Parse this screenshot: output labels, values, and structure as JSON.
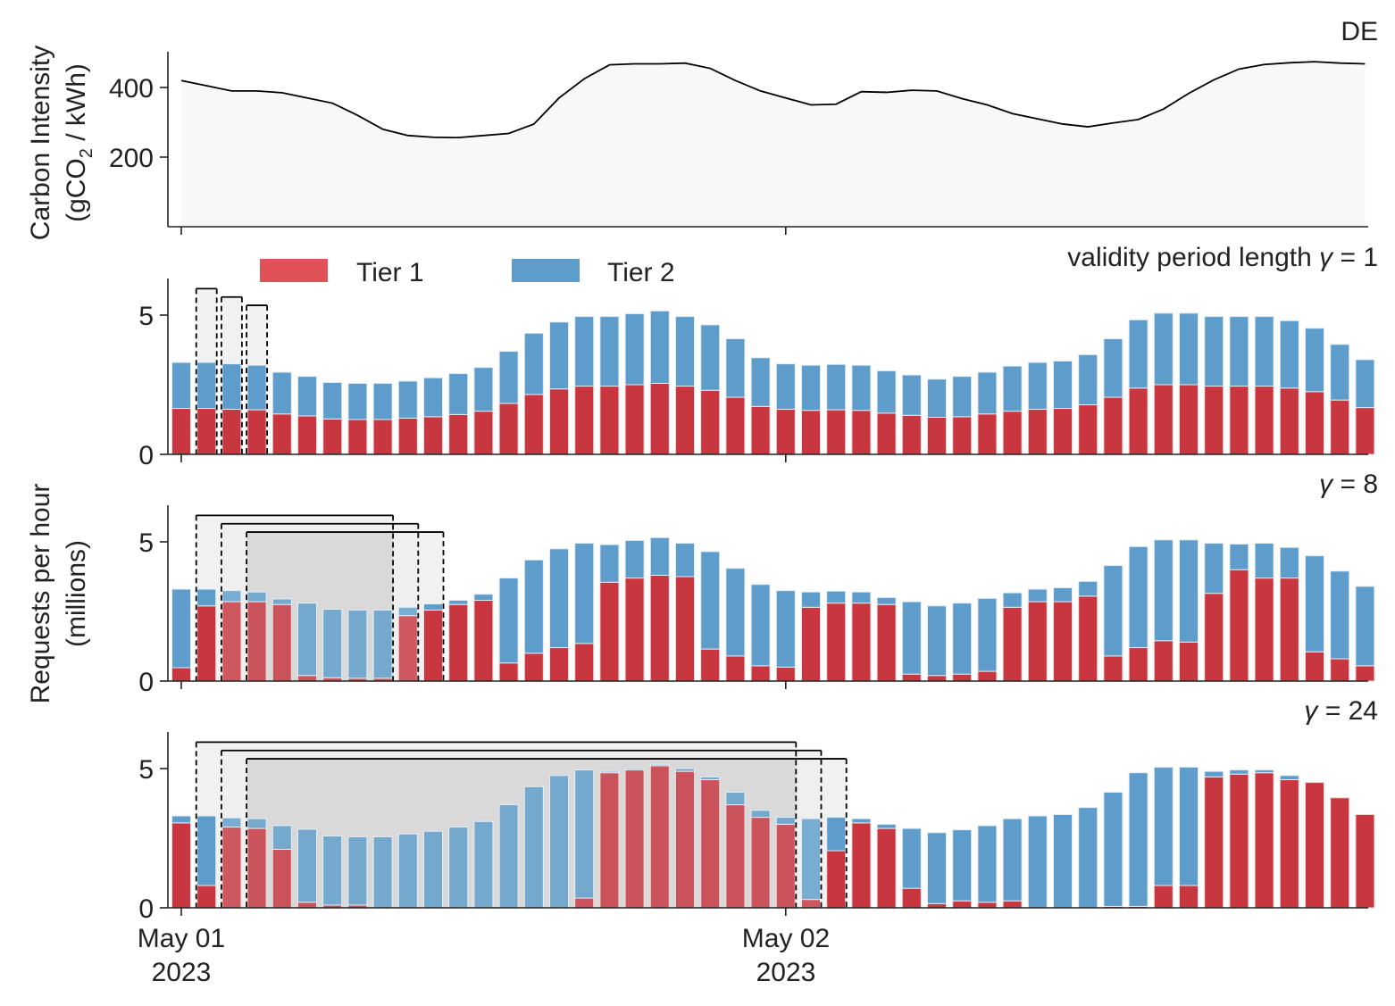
{
  "colors": {
    "tier1": "#c8363f",
    "tier2": "#5e9dcb",
    "window_light": "#efefef",
    "window_dark": "#d9d9d9"
  },
  "legend": {
    "tier1_label": "Tier 1",
    "tier2_label": "Tier 2"
  },
  "xaxis": {
    "tick_labels": [
      {
        "line1": "May 01",
        "line2": "2023"
      },
      {
        "line1": "May 02",
        "line2": "2023"
      }
    ]
  },
  "labels": {
    "top_ylabel_line1": "Carbon Intensity",
    "top_ylabel_line2_prefix": "(gCO",
    "top_ylabel_line2_sub": "2",
    "top_ylabel_line2_suffix": " / kWh)",
    "bottom_ylabel_line1": "Requests per hour",
    "bottom_ylabel_line2": "(millions)"
  },
  "chart_data": [
    {
      "type": "area",
      "title": "DE",
      "ylabel": "Carbon Intensity (gCO2 / kWh)",
      "yticks": [
        200,
        400
      ],
      "ylim": [
        0,
        500
      ],
      "x_hours": [
        0,
        1,
        2,
        3,
        4,
        5,
        6,
        7,
        8,
        9,
        10,
        11,
        12,
        13,
        14,
        15,
        16,
        17,
        18,
        19,
        20,
        21,
        22,
        23,
        24,
        25,
        26,
        27,
        28,
        29,
        30,
        31,
        32,
        33,
        34,
        35,
        36,
        37,
        38,
        39,
        40,
        41,
        42,
        43,
        44,
        45,
        46,
        47
      ],
      "values": [
        420,
        405,
        390,
        390,
        385,
        370,
        355,
        320,
        280,
        262,
        257,
        256,
        262,
        268,
        295,
        370,
        425,
        465,
        468,
        468,
        470,
        455,
        420,
        390,
        370,
        350,
        352,
        388,
        386,
        392,
        390,
        368,
        350,
        325,
        310,
        295,
        287,
        298,
        308,
        338,
        383,
        422,
        453,
        466,
        471,
        474,
        470,
        468
      ]
    },
    {
      "type": "bar",
      "title": "validity period length γ = 1",
      "title_text": "validity period length ",
      "gamma": "1",
      "yticks": [
        0,
        5
      ],
      "ylim": [
        0,
        6.3
      ],
      "categories_hours": [
        0,
        1,
        2,
        3,
        4,
        5,
        6,
        7,
        8,
        9,
        10,
        11,
        12,
        13,
        14,
        15,
        16,
        17,
        18,
        19,
        20,
        21,
        22,
        23,
        24,
        25,
        26,
        27,
        28,
        29,
        30,
        31,
        32,
        33,
        34,
        35,
        36,
        37,
        38,
        39,
        40,
        41,
        42,
        43,
        44,
        45,
        46,
        47
      ],
      "series": [
        {
          "name": "Tier 1",
          "values": [
            1.65,
            1.65,
            1.62,
            1.6,
            1.45,
            1.38,
            1.27,
            1.25,
            1.25,
            1.3,
            1.35,
            1.43,
            1.55,
            1.83,
            2.15,
            2.35,
            2.45,
            2.45,
            2.5,
            2.55,
            2.45,
            2.3,
            2.05,
            1.72,
            1.62,
            1.58,
            1.6,
            1.58,
            1.48,
            1.4,
            1.33,
            1.35,
            1.45,
            1.55,
            1.62,
            1.65,
            1.78,
            2.05,
            2.38,
            2.5,
            2.5,
            2.45,
            2.45,
            2.45,
            2.38,
            2.25,
            1.95,
            1.68
          ]
        },
        {
          "name": "Tier 2",
          "values": [
            1.65,
            1.65,
            1.63,
            1.6,
            1.5,
            1.42,
            1.31,
            1.3,
            1.3,
            1.33,
            1.4,
            1.47,
            1.57,
            1.87,
            2.2,
            2.4,
            2.5,
            2.5,
            2.55,
            2.6,
            2.5,
            2.35,
            2.1,
            1.75,
            1.63,
            1.62,
            1.63,
            1.62,
            1.52,
            1.45,
            1.37,
            1.45,
            1.5,
            1.62,
            1.68,
            1.7,
            1.8,
            2.1,
            2.45,
            2.57,
            2.57,
            2.5,
            2.5,
            2.5,
            2.42,
            2.28,
            2.0,
            1.72
          ]
        }
      ],
      "windows": [
        {
          "start_hour": 1,
          "length": 1,
          "peak": 5.95,
          "shaded": true
        },
        {
          "start_hour": 2,
          "length": 1,
          "peak": 5.65,
          "shaded": true
        },
        {
          "start_hour": 3,
          "length": 1,
          "peak": 5.35,
          "shaded": true
        }
      ]
    },
    {
      "type": "bar",
      "title": "γ = 8",
      "gamma": "8",
      "yticks": [
        0,
        5
      ],
      "ylim": [
        0,
        6.3
      ],
      "categories_hours": [
        0,
        1,
        2,
        3,
        4,
        5,
        6,
        7,
        8,
        9,
        10,
        11,
        12,
        13,
        14,
        15,
        16,
        17,
        18,
        19,
        20,
        21,
        22,
        23,
        24,
        25,
        26,
        27,
        28,
        29,
        30,
        31,
        32,
        33,
        34,
        35,
        36,
        37,
        38,
        39,
        40,
        41,
        42,
        43,
        44,
        45,
        46,
        47
      ],
      "series": [
        {
          "name": "Tier 1",
          "values": [
            0.48,
            2.7,
            2.85,
            2.85,
            2.75,
            0.2,
            0.12,
            0.1,
            0.1,
            2.35,
            2.55,
            2.75,
            2.9,
            0.65,
            1.0,
            1.2,
            1.35,
            3.55,
            3.7,
            3.8,
            3.75,
            1.15,
            0.9,
            0.55,
            0.5,
            2.65,
            2.8,
            2.8,
            2.75,
            0.25,
            0.2,
            0.25,
            0.35,
            2.65,
            2.85,
            2.85,
            3.05,
            0.9,
            1.2,
            1.45,
            1.4,
            3.15,
            4.0,
            3.7,
            3.7,
            1.05,
            0.8,
            0.55
          ]
        },
        {
          "name": "Tier 2",
          "values": [
            2.82,
            0.6,
            0.4,
            0.35,
            0.2,
            2.6,
            2.46,
            2.45,
            2.45,
            0.3,
            0.22,
            0.15,
            0.22,
            3.05,
            3.35,
            3.55,
            3.6,
            1.35,
            1.35,
            1.35,
            1.2,
            3.5,
            3.15,
            2.92,
            2.75,
            0.55,
            0.43,
            0.4,
            0.25,
            2.6,
            2.5,
            2.55,
            2.62,
            0.52,
            0.45,
            0.5,
            0.53,
            3.25,
            3.63,
            3.62,
            3.67,
            1.8,
            0.92,
            1.25,
            1.1,
            3.45,
            3.15,
            2.85
          ]
        }
      ],
      "windows": [
        {
          "start_hour": 1,
          "length": 8,
          "peak": 5.95,
          "shaded": true
        },
        {
          "start_hour": 2,
          "length": 8,
          "peak": 5.65,
          "shaded": true
        },
        {
          "start_hour": 3,
          "length": 8,
          "peak": 5.35,
          "shaded": true
        }
      ]
    },
    {
      "type": "bar",
      "title": "γ = 24",
      "gamma": "24",
      "yticks": [
        0,
        5
      ],
      "ylim": [
        0,
        6.3
      ],
      "categories_hours": [
        0,
        1,
        2,
        3,
        4,
        5,
        6,
        7,
        8,
        9,
        10,
        11,
        12,
        13,
        14,
        15,
        16,
        17,
        18,
        19,
        20,
        21,
        22,
        23,
        24,
        25,
        26,
        27,
        28,
        29,
        30,
        31,
        32,
        33,
        34,
        35,
        36,
        37,
        38,
        39,
        40,
        41,
        42,
        43,
        44,
        45,
        46,
        47
      ],
      "series": [
        {
          "name": "Tier 1",
          "values": [
            3.05,
            0.8,
            2.9,
            2.85,
            2.1,
            0.2,
            0.1,
            0.1,
            0,
            0,
            0,
            0,
            0,
            0,
            0,
            0,
            0.35,
            4.85,
            4.95,
            5.1,
            4.9,
            4.6,
            3.7,
            3.25,
            3.0,
            0.3,
            2.05,
            3.05,
            2.85,
            0.7,
            0.15,
            0.25,
            0.2,
            0.25,
            0,
            0,
            0,
            0.05,
            0.05,
            0.8,
            0.8,
            4.7,
            4.8,
            4.85,
            4.6,
            4.5,
            3.95,
            3.35
          ]
        },
        {
          "name": "Tier 2",
          "values": [
            0.25,
            2.5,
            0.33,
            0.35,
            0.85,
            2.62,
            2.48,
            2.45,
            2.55,
            2.65,
            2.75,
            2.9,
            3.1,
            3.7,
            4.35,
            4.75,
            4.6,
            0.05,
            0.05,
            0.05,
            0.1,
            0.1,
            0.45,
            0.25,
            0.25,
            2.9,
            1.2,
            0.15,
            0.15,
            2.15,
            2.55,
            2.55,
            2.75,
            2.95,
            3.3,
            3.35,
            3.6,
            4.1,
            4.8,
            4.25,
            4.25,
            0.2,
            0.15,
            0.1,
            0.15,
            0,
            0,
            0
          ]
        }
      ],
      "windows": [
        {
          "start_hour": 1,
          "length": 24,
          "peak": 5.95,
          "shaded": true
        },
        {
          "start_hour": 2,
          "length": 24,
          "peak": 5.65,
          "shaded": true
        },
        {
          "start_hour": 3,
          "length": 24,
          "peak": 5.35,
          "shaded": true
        }
      ]
    }
  ]
}
